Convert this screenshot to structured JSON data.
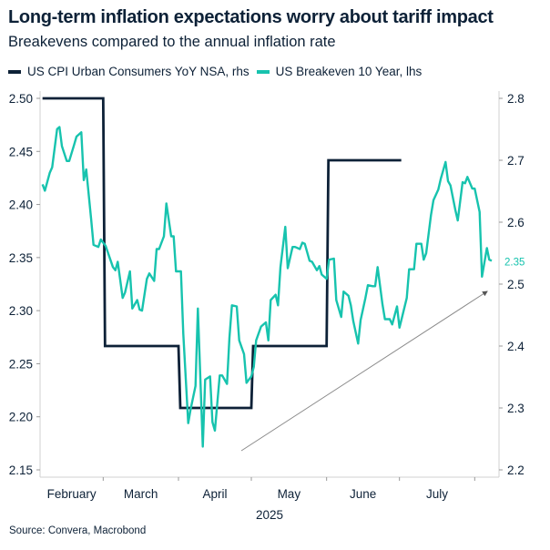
{
  "title": "Long-term inflation expectations worry about tariff impact",
  "subtitle": "Breakevens compared to the annual inflation rate",
  "source": "Source: Convera, Macrobond",
  "colors": {
    "cpi": "#0d2137",
    "breakeven": "#17c3ae",
    "arrow": "#8a8a8a",
    "axis": "#d0d0d0"
  },
  "chart_data": {
    "type": "line",
    "title": "Long-term inflation expectations worry about tariff impact",
    "x_range": [
      "2025-02-03",
      "2025-08-11"
    ],
    "x_tick_labels": [
      "February",
      "March",
      "April",
      "May",
      "June",
      "July"
    ],
    "x_year_label": "2025",
    "left_axis": {
      "range": [
        2.15,
        2.5
      ],
      "ticks": [
        "2.15",
        "2.20",
        "2.25",
        "2.30",
        "2.35",
        "2.40",
        "2.45",
        "2.50"
      ]
    },
    "right_axis": {
      "range": [
        2.2,
        2.8
      ],
      "ticks": [
        "2.2",
        "2.3",
        "2.4",
        "2.5",
        "2.6",
        "2.7",
        "2.8"
      ]
    },
    "grid": false,
    "legend_placement": "top-left",
    "last_value_label": "2.35",
    "annotation": "upward trend arrow",
    "series": [
      {
        "name": "US CPI Urban Consumers YoY NSA, rhs",
        "axis": "right",
        "style": "step",
        "points": [
          {
            "date": "2025-02-04",
            "value": 2.8
          },
          {
            "date": "2025-03-01",
            "value": 2.4
          },
          {
            "date": "2025-04-01",
            "value": 2.3
          },
          {
            "date": "2025-05-01",
            "value": 2.4
          },
          {
            "date": "2025-06-01",
            "value": 2.7
          },
          {
            "date": "2025-07-01",
            "value": 2.7
          }
        ]
      },
      {
        "name": "US Breakeven 10 Year, lhs",
        "axis": "left",
        "style": "line",
        "dates": [
          "2025-02-04",
          "2025-02-05",
          "2025-02-07",
          "2025-02-08",
          "2025-02-10",
          "2025-02-11",
          "2025-02-12",
          "2025-02-14",
          "2025-02-15",
          "2025-02-17",
          "2025-02-18",
          "2025-02-20",
          "2025-02-21",
          "2025-02-22",
          "2025-02-24",
          "2025-02-25",
          "2025-02-27",
          "2025-02-28",
          "2025-03-02",
          "2025-03-05",
          "2025-03-06",
          "2025-03-07",
          "2025-03-09",
          "2025-03-10",
          "2025-03-12",
          "2025-03-13",
          "2025-03-15",
          "2025-03-16",
          "2025-03-17",
          "2025-03-19",
          "2025-03-20",
          "2025-03-22",
          "2025-03-23",
          "2025-03-24",
          "2025-03-26",
          "2025-03-27",
          "2025-03-29",
          "2025-03-30",
          "2025-03-31",
          "2025-04-02",
          "2025-04-03",
          "2025-04-05",
          "2025-04-06",
          "2025-04-08",
          "2025-04-09",
          "2025-04-11",
          "2025-04-12",
          "2025-04-14",
          "2025-04-15",
          "2025-04-16",
          "2025-04-18",
          "2025-04-19",
          "2025-04-21",
          "2025-04-22",
          "2025-04-23",
          "2025-04-25",
          "2025-04-26",
          "2025-04-28",
          "2025-04-29",
          "2025-05-01",
          "2025-05-02",
          "2025-05-03",
          "2025-05-05",
          "2025-05-07",
          "2025-05-08",
          "2025-05-09",
          "2025-05-11",
          "2025-05-12",
          "2025-05-13",
          "2025-05-15",
          "2025-05-16",
          "2025-05-18",
          "2025-05-19",
          "2025-05-21",
          "2025-05-22",
          "2025-05-23",
          "2025-05-25",
          "2025-05-26",
          "2025-05-28",
          "2025-05-29",
          "2025-05-30",
          "2025-06-01",
          "2025-06-02",
          "2025-06-04",
          "2025-06-05",
          "2025-06-07",
          "2025-06-08",
          "2025-06-10",
          "2025-06-11",
          "2025-06-12",
          "2025-06-14",
          "2025-06-15",
          "2025-06-17",
          "2025-06-18",
          "2025-06-20",
          "2025-06-21",
          "2025-06-22",
          "2025-06-24",
          "2025-06-25",
          "2025-06-27",
          "2025-06-28",
          "2025-06-30",
          "2025-07-01",
          "2025-07-02",
          "2025-07-04",
          "2025-07-05",
          "2025-07-07",
          "2025-07-08",
          "2025-07-10",
          "2025-07-11",
          "2025-07-12",
          "2025-07-14",
          "2025-07-15",
          "2025-07-17",
          "2025-07-18",
          "2025-07-20",
          "2025-07-21",
          "2025-07-22",
          "2025-07-24",
          "2025-07-25",
          "2025-07-27",
          "2025-07-28",
          "2025-07-29",
          "2025-07-31",
          "2025-08-01",
          "2025-08-03",
          "2025-08-04",
          "2025-08-06",
          "2025-08-07",
          "2025-08-08"
        ],
        "values": [
          2.419,
          2.413,
          2.43,
          2.435,
          2.471,
          2.473,
          2.455,
          2.441,
          2.441,
          2.456,
          2.464,
          2.468,
          2.423,
          2.433,
          2.387,
          2.362,
          2.36,
          2.367,
          2.361,
          2.341,
          2.338,
          2.346,
          2.312,
          2.317,
          2.337,
          2.302,
          2.31,
          2.301,
          2.3,
          2.33,
          2.335,
          2.328,
          2.358,
          2.358,
          2.37,
          2.401,
          2.37,
          2.37,
          2.337,
          2.337,
          2.278,
          2.194,
          2.207,
          2.229,
          2.302,
          2.172,
          2.235,
          2.238,
          2.195,
          2.187,
          2.239,
          2.239,
          2.231,
          2.275,
          2.305,
          2.304,
          2.272,
          2.259,
          2.232,
          2.238,
          2.247,
          2.272,
          2.285,
          2.289,
          2.272,
          2.31,
          2.315,
          2.305,
          2.341,
          2.379,
          2.34,
          2.36,
          2.36,
          2.358,
          2.364,
          2.363,
          2.347,
          2.346,
          2.338,
          2.342,
          2.334,
          2.33,
          2.348,
          2.349,
          2.31,
          2.294,
          2.318,
          2.314,
          2.305,
          2.29,
          2.269,
          2.291,
          2.312,
          2.324,
          2.323,
          2.323,
          2.341,
          2.306,
          2.292,
          2.292,
          2.287,
          2.304,
          2.284,
          2.293,
          2.312,
          2.339,
          2.339,
          2.363,
          2.363,
          2.348,
          2.354,
          2.39,
          2.404,
          2.414,
          2.424,
          2.44,
          2.422,
          2.418,
          2.395,
          2.385,
          2.421,
          2.42,
          2.426,
          2.415,
          2.415,
          2.393,
          2.332,
          2.359,
          2.348,
          2.347
        ]
      }
    ]
  }
}
